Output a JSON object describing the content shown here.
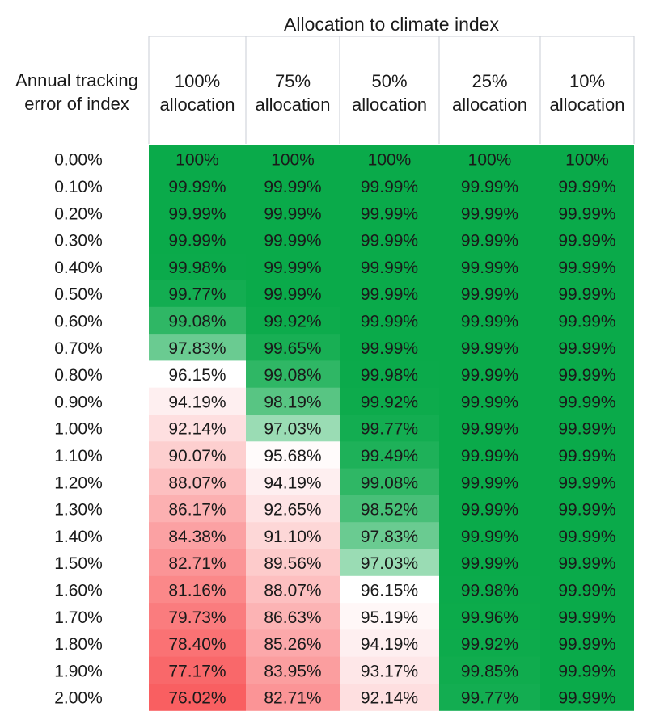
{
  "chart_data": {
    "type": "heatmap",
    "title": "",
    "column_group_label": "Allocation to climate index",
    "row_header_label": [
      "Annual tracking",
      "error of index"
    ],
    "columns": [
      [
        "100%",
        "allocation"
      ],
      [
        "75%",
        "allocation"
      ],
      [
        "50%",
        "allocation"
      ],
      [
        "25%",
        "allocation"
      ],
      [
        "10%",
        "allocation"
      ]
    ],
    "rows": [
      "0.00%",
      "0.10%",
      "0.20%",
      "0.30%",
      "0.40%",
      "0.50%",
      "0.60%",
      "0.70%",
      "0.80%",
      "0.90%",
      "1.00%",
      "1.10%",
      "1.20%",
      "1.30%",
      "1.40%",
      "1.50%",
      "1.60%",
      "1.70%",
      "1.80%",
      "1.90%",
      "2.00%"
    ],
    "cells": [
      [
        "100%",
        "100%",
        "100%",
        "100%",
        "100%"
      ],
      [
        "99.99%",
        "99.99%",
        "99.99%",
        "99.99%",
        "99.99%"
      ],
      [
        "99.99%",
        "99.99%",
        "99.99%",
        "99.99%",
        "99.99%"
      ],
      [
        "99.99%",
        "99.99%",
        "99.99%",
        "99.99%",
        "99.99%"
      ],
      [
        "99.98%",
        "99.99%",
        "99.99%",
        "99.99%",
        "99.99%"
      ],
      [
        "99.77%",
        "99.99%",
        "99.99%",
        "99.99%",
        "99.99%"
      ],
      [
        "99.08%",
        "99.92%",
        "99.99%",
        "99.99%",
        "99.99%"
      ],
      [
        "97.83%",
        "99.65%",
        "99.99%",
        "99.99%",
        "99.99%"
      ],
      [
        "96.15%",
        "99.08%",
        "99.98%",
        "99.99%",
        "99.99%"
      ],
      [
        "94.19%",
        "98.19%",
        "99.92%",
        "99.99%",
        "99.99%"
      ],
      [
        "92.14%",
        "97.03%",
        "99.77%",
        "99.99%",
        "99.99%"
      ],
      [
        "90.07%",
        "95.68%",
        "99.49%",
        "99.99%",
        "99.99%"
      ],
      [
        "88.07%",
        "94.19%",
        "99.08%",
        "99.99%",
        "99.99%"
      ],
      [
        "86.17%",
        "92.65%",
        "98.52%",
        "99.99%",
        "99.99%"
      ],
      [
        "84.38%",
        "91.10%",
        "97.83%",
        "99.99%",
        "99.99%"
      ],
      [
        "82.71%",
        "89.56%",
        "97.03%",
        "99.99%",
        "99.99%"
      ],
      [
        "81.16%",
        "88.07%",
        "96.15%",
        "99.98%",
        "99.99%"
      ],
      [
        "79.73%",
        "86.63%",
        "95.19%",
        "99.96%",
        "99.99%"
      ],
      [
        "78.40%",
        "85.26%",
        "94.19%",
        "99.92%",
        "99.99%"
      ],
      [
        "77.17%",
        "83.95%",
        "93.17%",
        "99.85%",
        "99.99%"
      ],
      [
        "76.02%",
        "82.71%",
        "92.14%",
        "99.77%",
        "99.99%"
      ]
    ],
    "color_scale": {
      "high_color": "#0aaa4a",
      "mid_color": "#ffffff",
      "low_color": "#f95f61"
    }
  }
}
